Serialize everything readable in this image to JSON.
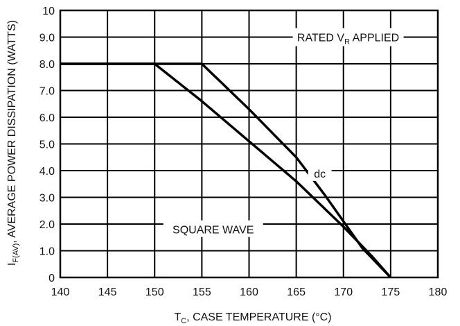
{
  "chart_data": {
    "type": "line",
    "xlabel_main": "T",
    "xlabel_sub": "C",
    "xlabel_rest": ", CASE TEMPERATURE (°C)",
    "ylabel_main": "I",
    "ylabel_sub": "F(AV)",
    "ylabel_rest": ", AVERAGE POWER DISSIPATION (WATTS)",
    "xlim": [
      140,
      180
    ],
    "ylim": [
      0,
      10
    ],
    "x_ticks": [
      "140",
      "145",
      "150",
      "155",
      "160",
      "165",
      "170",
      "175",
      "180"
    ],
    "y_ticks": [
      "0",
      "1.0",
      "2.0",
      "3.0",
      "4.0",
      "5.0",
      "6.0",
      "7.0",
      "8.0",
      "9.0",
      "10"
    ],
    "grid": true,
    "series": [
      {
        "name": "dc",
        "x": [
          140,
          155,
          160,
          165,
          168,
          170,
          172,
          175
        ],
        "y": [
          8.0,
          8.0,
          6.3,
          4.5,
          3.1,
          2.1,
          1.1,
          0
        ]
      },
      {
        "name": "SQUARE WAVE",
        "x": [
          140,
          150,
          155,
          160,
          165,
          170,
          173,
          175
        ],
        "y": [
          8.0,
          8.0,
          6.6,
          5.1,
          3.6,
          1.9,
          0.8,
          0
        ]
      }
    ],
    "annotations": [
      {
        "main": "RATED V",
        "sub": "R",
        "rest": " APPLIED",
        "x": 170.5,
        "y": 9.0
      },
      {
        "main": "dc",
        "x": 167.5,
        "y": 3.9
      },
      {
        "main": "SQUARE WAVE",
        "x": 156.2,
        "y": 1.8
      }
    ]
  }
}
